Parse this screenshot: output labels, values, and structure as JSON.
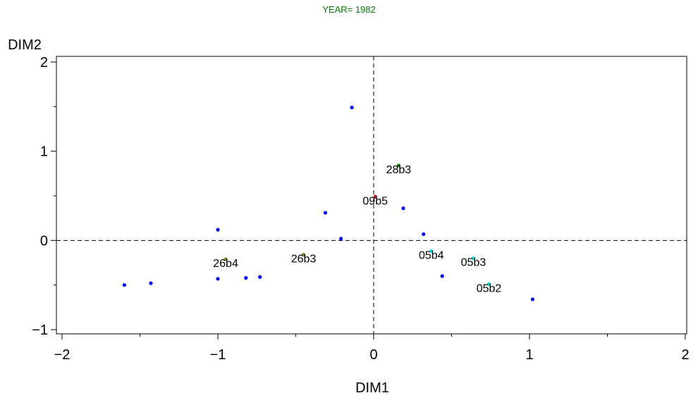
{
  "chart_data": {
    "type": "scatter",
    "title": "YEAR= 1982",
    "xlabel": "DIM1",
    "ylabel": "DIM2",
    "xlim": [
      -2,
      2
    ],
    "ylim": [
      -1,
      2
    ],
    "x_ticks": [
      -2,
      -1,
      0,
      1,
      2
    ],
    "y_ticks": [
      -1,
      0,
      1,
      2
    ],
    "x_tick_labels": [
      "−2",
      "−1",
      "0",
      "1",
      "2"
    ],
    "y_tick_labels": [
      "−1",
      "0",
      "1",
      "2"
    ],
    "reference_lines": {
      "x": 0,
      "y": 0,
      "style": "dashed"
    },
    "grid": false,
    "points": [
      {
        "x": -1.6,
        "y": -0.5,
        "label": "",
        "color": "#0000ff"
      },
      {
        "x": -1.43,
        "y": -0.48,
        "label": "",
        "color": "#0000ff"
      },
      {
        "x": -1.0,
        "y": 0.12,
        "label": "",
        "color": "#0000ff"
      },
      {
        "x": -1.0,
        "y": -0.43,
        "label": "",
        "color": "#0000ff"
      },
      {
        "x": -0.95,
        "y": -0.21,
        "label": "26b4",
        "color": "#8b7d2a"
      },
      {
        "x": -0.82,
        "y": -0.42,
        "label": "",
        "color": "#0000ff"
      },
      {
        "x": -0.73,
        "y": -0.41,
        "label": "",
        "color": "#0000ff"
      },
      {
        "x": -0.45,
        "y": -0.16,
        "label": "26b3",
        "color": "#8b7d2a"
      },
      {
        "x": -0.31,
        "y": 0.31,
        "label": "",
        "color": "#0000ff"
      },
      {
        "x": -0.21,
        "y": 0.02,
        "label": "",
        "color": "#0000ff"
      },
      {
        "x": -0.14,
        "y": 1.49,
        "label": "",
        "color": "#0000ff"
      },
      {
        "x": 0.01,
        "y": 0.49,
        "label": "09b5",
        "color": "#a02020"
      },
      {
        "x": 0.16,
        "y": 0.84,
        "label": "28b3",
        "color": "#008000"
      },
      {
        "x": 0.19,
        "y": 0.36,
        "label": "",
        "color": "#0000ff"
      },
      {
        "x": 0.32,
        "y": 0.07,
        "label": "",
        "color": "#0000ff"
      },
      {
        "x": 0.37,
        "y": -0.12,
        "label": "05b4",
        "color": "#00d8e0"
      },
      {
        "x": 0.44,
        "y": -0.4,
        "label": "",
        "color": "#0000ff"
      },
      {
        "x": 0.64,
        "y": -0.2,
        "label": "05b3",
        "color": "#00d8e0"
      },
      {
        "x": 0.74,
        "y": -0.49,
        "label": "05b2",
        "color": "#00d8e0"
      },
      {
        "x": 1.02,
        "y": -0.66,
        "label": "",
        "color": "#0000ff"
      }
    ],
    "colors": {
      "title": "#008000",
      "axis": "#000000",
      "default_point": "#0000ff"
    }
  }
}
